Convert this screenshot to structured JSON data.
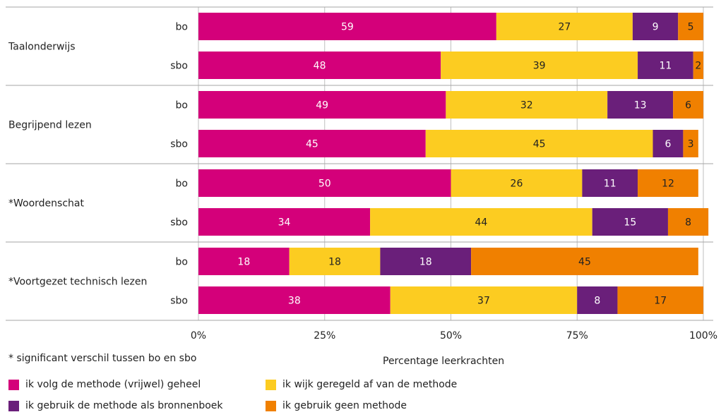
{
  "chart_data": {
    "type": "bar",
    "orientation": "horizontal",
    "stacked": true,
    "groups": [
      {
        "label": "Taalonderwijs",
        "rows": [
          {
            "label": "bo",
            "values": [
              59,
              27,
              9,
              5
            ]
          },
          {
            "label": "sbo",
            "values": [
              48,
              39,
              11,
              2
            ]
          }
        ]
      },
      {
        "label": "Begrijpend lezen",
        "rows": [
          {
            "label": "bo",
            "values": [
              49,
              32,
              13,
              6
            ]
          },
          {
            "label": "sbo",
            "values": [
              45,
              45,
              6,
              3
            ]
          }
        ]
      },
      {
        "label": "*Woordenschat",
        "rows": [
          {
            "label": "bo",
            "values": [
              50,
              26,
              11,
              12
            ]
          },
          {
            "label": "sbo",
            "values": [
              34,
              44,
              15,
              8
            ]
          }
        ]
      },
      {
        "label": "*Voortgezet technisch lezen",
        "rows": [
          {
            "label": "bo",
            "values": [
              18,
              18,
              18,
              45
            ]
          },
          {
            "label": "sbo",
            "values": [
              38,
              37,
              8,
              17
            ]
          }
        ]
      }
    ],
    "series": [
      {
        "name": "ik volg de methode (vrijwel) geheel",
        "color": "#d4007a",
        "label_color": "#ffffff"
      },
      {
        "name": "ik wijk geregeld af van de methode",
        "color": "#fccc21",
        "label_color": "#222222"
      },
      {
        "name": "ik gebruik de methode als bronnenboek",
        "color": "#6a1f7a",
        "label_color": "#ffffff"
      },
      {
        "name": "ik gebruik geen methode",
        "color": "#f08000",
        "label_color": "#222222"
      }
    ],
    "xticks": [
      "0%",
      "25%",
      "50%",
      "75%",
      "100%"
    ],
    "xlim": [
      0,
      100
    ],
    "xlabel": "Percentage leerkrachten",
    "grid": true,
    "legend_position": "bottom"
  },
  "footnote": "* significant verschil tussen bo en sbo"
}
